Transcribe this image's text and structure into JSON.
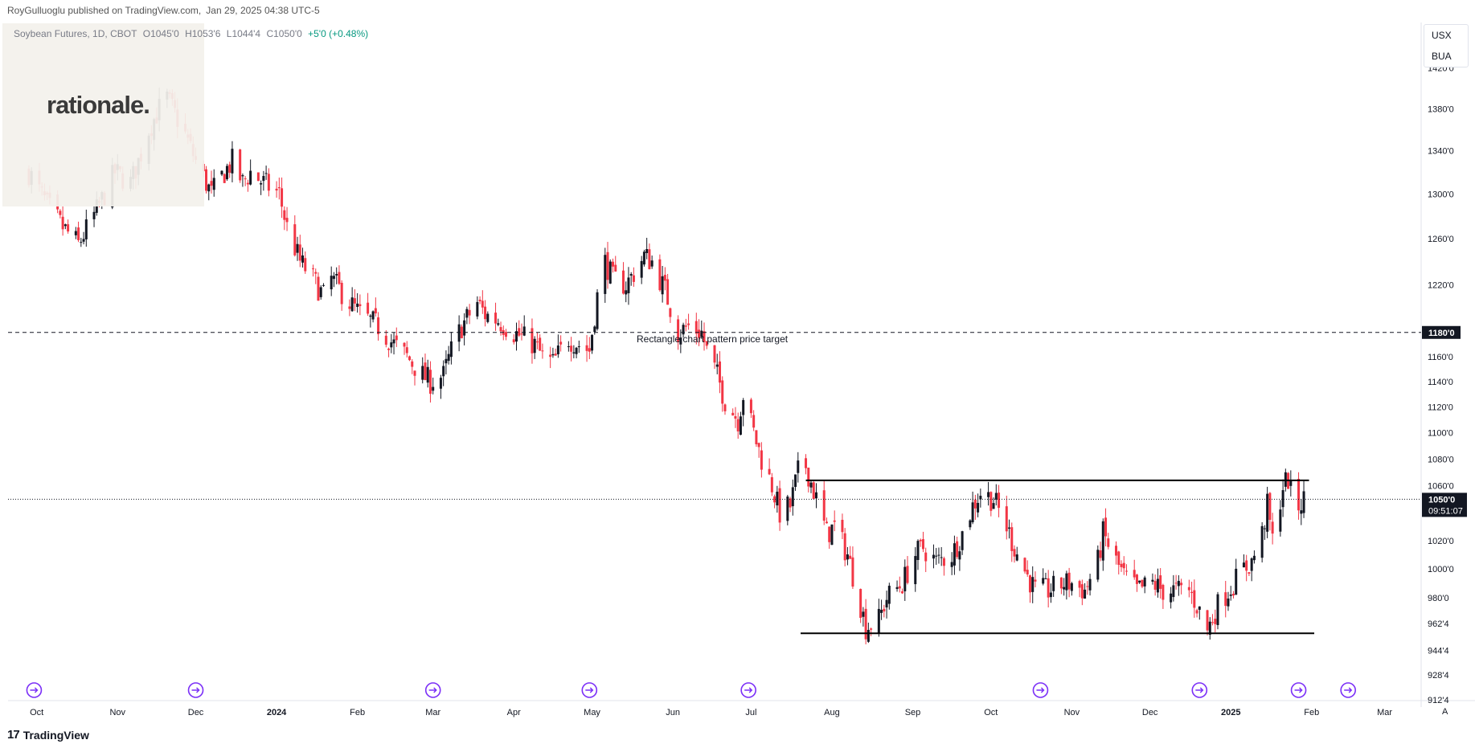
{
  "header": {
    "publisher": "RoyGulluoglu published on TradingView.com,",
    "timestamp": "Jan 29, 2025 04:38 UTC-5"
  },
  "symbol_bar": {
    "symbol": "Soybean Futures, 1D, CBOT",
    "open": "O1045'0",
    "high": "H1053'6",
    "low": "L1044'4",
    "close": "C1050'0",
    "change": "+5'0 (+0.48%)"
  },
  "watermark": {
    "text": "rationale."
  },
  "currency_box": {
    "currency": "USX",
    "unit": "BUA"
  },
  "footer": {
    "brand": "TradingView"
  },
  "time_axis_button": "A",
  "colors": {
    "up": "#131722",
    "down": "#f23645",
    "pattern_line": "#000000",
    "dashed_line": "#131722",
    "event_marker": "#7b2ff7",
    "price_label_bg": "#131722"
  },
  "chart_data": {
    "type": "candlestick",
    "title": "Soybean Futures, 1D, CBOT",
    "x_axis_labels": [
      "Oct",
      "Nov",
      "Dec",
      "2024",
      "Feb",
      "Mar",
      "Apr",
      "May",
      "Jun",
      "Jul",
      "Aug",
      "Sep",
      "Oct",
      "Nov",
      "Dec",
      "2025",
      "Feb",
      "Mar"
    ],
    "y_axis_labels": [
      "1420'0",
      "1380'0",
      "1340'0",
      "1300'0",
      "1260'0",
      "1220'0",
      "1180'0",
      "1160'0",
      "1140'0",
      "1120'0",
      "1100'0",
      "1080'0",
      "1060'0",
      "1020'0",
      "1000'0",
      "980'0",
      "962'4",
      "944'4",
      "928'4",
      "912'4"
    ],
    "y_scale": "log",
    "y_range": [
      912,
      1430
    ],
    "last_price": {
      "label": "1050'0",
      "countdown": "09:51:07",
      "value": 1050
    },
    "horizontal_line": {
      "label": "1180'0",
      "value": 1180,
      "style": "dashed"
    },
    "annotation": "Rectangle chart pattern price target",
    "rectangle_pattern": {
      "resistance": 1064,
      "support": 956,
      "start": "2024-07-22",
      "end": "2025-02-05"
    },
    "close_path": [
      [
        "2023-09-28",
        1320
      ],
      [
        "2023-10-05",
        1290
      ],
      [
        "2023-10-11",
        1270
      ],
      [
        "2023-10-17",
        1255
      ],
      [
        "2023-10-24",
        1285
      ],
      [
        "2023-10-31",
        1320
      ],
      [
        "2023-11-06",
        1310
      ],
      [
        "2023-11-09",
        1330
      ],
      [
        "2023-11-13",
        1360
      ],
      [
        "2023-11-17",
        1380
      ],
      [
        "2023-11-20",
        1390
      ],
      [
        "2023-11-27",
        1355
      ],
      [
        "2023-12-01",
        1330
      ],
      [
        "2023-12-07",
        1300
      ],
      [
        "2023-12-12",
        1320
      ],
      [
        "2023-12-15",
        1330
      ],
      [
        "2023-12-19",
        1310
      ],
      [
        "2023-12-22",
        1320
      ],
      [
        "2023-12-27",
        1310
      ],
      [
        "2024-01-02",
        1300
      ],
      [
        "2024-01-05",
        1270
      ],
      [
        "2024-01-10",
        1240
      ],
      [
        "2024-01-15",
        1225
      ],
      [
        "2024-01-19",
        1210
      ],
      [
        "2024-01-22",
        1225
      ],
      [
        "2024-01-29",
        1205
      ],
      [
        "2024-02-02",
        1195
      ],
      [
        "2024-02-09",
        1185
      ],
      [
        "2024-02-15",
        1170
      ],
      [
        "2024-02-20",
        1160
      ],
      [
        "2024-02-26",
        1145
      ],
      [
        "2024-02-29",
        1140
      ],
      [
        "2024-03-05",
        1145
      ],
      [
        "2024-03-08",
        1165
      ],
      [
        "2024-03-12",
        1185
      ],
      [
        "2024-03-18",
        1205
      ],
      [
        "2024-03-21",
        1195
      ],
      [
        "2024-03-26",
        1190
      ],
      [
        "2024-04-01",
        1180
      ],
      [
        "2024-04-05",
        1175
      ],
      [
        "2024-04-09",
        1170
      ],
      [
        "2024-04-12",
        1160
      ],
      [
        "2024-04-16",
        1155
      ],
      [
        "2024-04-22",
        1175
      ],
      [
        "2024-04-26",
        1170
      ],
      [
        "2024-04-30",
        1165
      ],
      [
        "2024-05-03",
        1210
      ],
      [
        "2024-05-06",
        1240
      ],
      [
        "2024-05-09",
        1225
      ],
      [
        "2024-05-14",
        1220
      ],
      [
        "2024-05-17",
        1230
      ],
      [
        "2024-05-21",
        1245
      ],
      [
        "2024-05-24",
        1240
      ],
      [
        "2024-05-29",
        1215
      ],
      [
        "2024-06-03",
        1180
      ],
      [
        "2024-06-07",
        1185
      ],
      [
        "2024-06-12",
        1180
      ],
      [
        "2024-06-14",
        1165
      ],
      [
        "2024-06-18",
        1145
      ],
      [
        "2024-06-21",
        1125
      ],
      [
        "2024-06-26",
        1110
      ],
      [
        "2024-06-28",
        1130
      ],
      [
        "2024-07-02",
        1100
      ],
      [
        "2024-07-05",
        1080
      ],
      [
        "2024-07-09",
        1060
      ],
      [
        "2024-07-12",
        1040
      ],
      [
        "2024-07-16",
        1045
      ],
      [
        "2024-07-19",
        1070
      ],
      [
        "2024-07-22",
        1075
      ],
      [
        "2024-07-26",
        1050
      ],
      [
        "2024-07-30",
        1025
      ],
      [
        "2024-08-02",
        1030
      ],
      [
        "2024-08-07",
        1010
      ],
      [
        "2024-08-12",
        975
      ],
      [
        "2024-08-14",
        960
      ],
      [
        "2024-08-19",
        965
      ],
      [
        "2024-08-22",
        980
      ],
      [
        "2024-08-28",
        990
      ],
      [
        "2024-09-02",
        1010
      ],
      [
        "2024-09-05",
        1015
      ],
      [
        "2024-09-10",
        1005
      ],
      [
        "2024-09-16",
        1010
      ],
      [
        "2024-09-20",
        1025
      ],
      [
        "2024-09-24",
        1045
      ],
      [
        "2024-09-27",
        1055
      ],
      [
        "2024-10-02",
        1050
      ],
      [
        "2024-10-07",
        1030
      ],
      [
        "2024-10-10",
        1015
      ],
      [
        "2024-10-15",
        995
      ],
      [
        "2024-10-18",
        985
      ],
      [
        "2024-10-23",
        985
      ],
      [
        "2024-10-29",
        990
      ],
      [
        "2024-11-01",
        990
      ],
      [
        "2024-11-06",
        985
      ],
      [
        "2024-11-11",
        1005
      ],
      [
        "2024-11-13",
        1025
      ],
      [
        "2024-11-18",
        1005
      ],
      [
        "2024-11-21",
        995
      ],
      [
        "2024-11-26",
        985
      ],
      [
        "2024-12-02",
        990
      ],
      [
        "2024-12-06",
        985
      ],
      [
        "2024-12-11",
        985
      ],
      [
        "2024-12-16",
        985
      ],
      [
        "2024-12-19",
        975
      ],
      [
        "2024-12-23",
        958
      ],
      [
        "2024-12-27",
        975
      ],
      [
        "2025-01-02",
        990
      ],
      [
        "2025-01-06",
        1000
      ],
      [
        "2025-01-09",
        1005
      ],
      [
        "2025-01-13",
        1025
      ],
      [
        "2025-01-15",
        1045
      ],
      [
        "2025-01-17",
        1020
      ],
      [
        "2025-01-21",
        1060
      ],
      [
        "2025-01-23",
        1065
      ],
      [
        "2025-01-24",
        1055
      ],
      [
        "2025-01-27",
        1045
      ],
      [
        "2025-01-29",
        1050
      ]
    ],
    "event_markers": [
      "2023-09-30",
      "2023-12-01",
      "2024-03-01",
      "2024-04-30",
      "2024-06-30",
      "2024-10-20",
      "2024-12-20",
      "2025-01-27",
      "2025-02-15"
    ]
  }
}
